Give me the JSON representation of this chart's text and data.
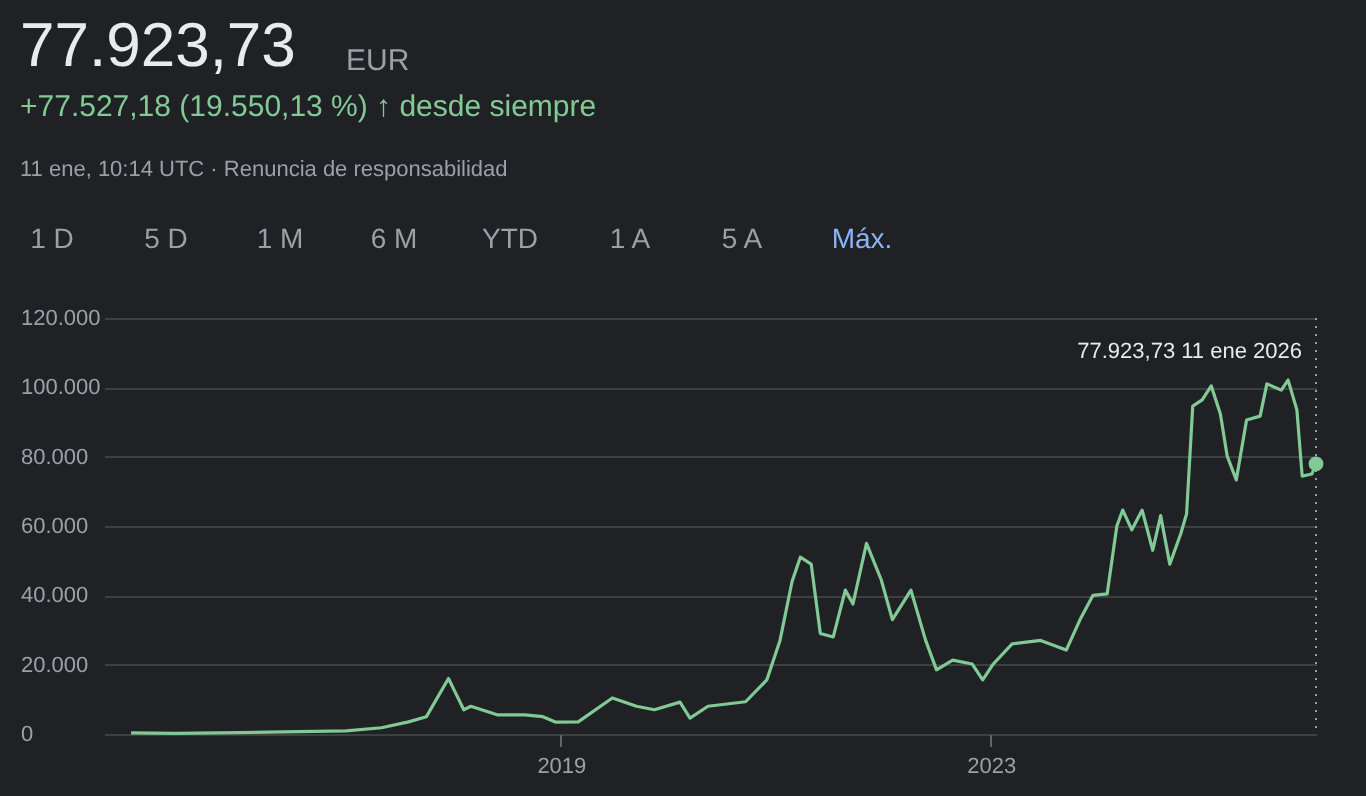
{
  "chart_data": {
    "type": "line",
    "title": "77.923,73",
    "subtitle": "+77.527,18 (19.550,13 %) ↑ desde siempre",
    "annotations": [
      "EUR",
      "11 ene, 10:14 UTC · Renuncia de responsabilidad",
      "1 D",
      "5 D",
      "1 M",
      "6 M",
      "YTD",
      "1 A",
      "5 A",
      "Máx.",
      "77.923,73  11 ene 2026"
    ],
    "x": [
      "2015-01-01",
      "2015-06-01",
      "2016-01-01",
      "2016-06-01",
      "2017-01-01",
      "2017-05-01",
      "2017-08-01",
      "2017-10-01",
      "2017-12-15",
      "2018-01-10",
      "2018-02-05",
      "2018-03-01",
      "2018-06-01",
      "2018-09-01",
      "2018-11-01",
      "2018-12-15",
      "2019-03-01",
      "2019-06-25",
      "2019-09-15",
      "2019-11-15",
      "2020-02-10",
      "2020-03-15",
      "2020-05-15",
      "2020-09-20",
      "2020-12-01",
      "2021-01-15",
      "2021-02-25",
      "2021-03-25",
      "2021-05-01",
      "2021-06-01",
      "2021-07-15",
      "2021-08-25",
      "2021-09-20",
      "2021-11-05",
      "2021-12-25",
      "2022-02-01",
      "2022-04-05",
      "2022-05-25",
      "2022-07-01",
      "2022-08-25",
      "2022-10-30",
      "2022-12-05",
      "2023-01-10",
      "2023-03-15",
      "2023-06-20",
      "2023-09-15",
      "2023-11-01",
      "2023-12-15",
      "2024-02-01",
      "2024-03-05",
      "2024-03-25",
      "2024-04-25",
      "2024-05-30",
      "2024-07-05",
      "2024-08-01",
      "2024-09-01",
      "2024-10-08",
      "2024-10-28",
      "2024-11-18",
      "2024-12-20",
      "2025-01-20",
      "2025-02-20",
      "2025-03-15",
      "2025-04-15",
      "2025-05-20",
      "2025-07-05",
      "2025-07-28",
      "2025-09-15",
      "2025-10-08",
      "2025-11-07",
      "2025-11-25",
      "2025-12-28",
      "2026-01-11"
    ],
    "series": [
      {
        "color": "#81c995",
        "values": [
          300,
          200,
          400,
          600,
          900,
          1800,
          3500,
          5000,
          16000,
          11500,
          7000,
          8000,
          5500,
          5500,
          5000,
          3400,
          3500,
          10400,
          8000,
          7000,
          9200,
          4600,
          8000,
          9300,
          15600,
          27000,
          44000,
          51000,
          49000,
          29000,
          28000,
          41500,
          37500,
          55000,
          44500,
          33000,
          41500,
          27000,
          18500,
          21300,
          20200,
          15600,
          20200,
          26000,
          27000,
          24200,
          33000,
          40000,
          40400,
          60000,
          64600,
          58900,
          64600,
          53000,
          63000,
          49000,
          57700,
          63500,
          94600,
          96400,
          100400,
          92300,
          80200,
          73300,
          90600,
          91700,
          101000,
          99200,
          102100,
          93500,
          74400,
          75000,
          77923.73
        ]
      }
    ],
    "xlim": [
      "2014-10-01",
      "2026-01-11"
    ],
    "xticks": [
      {
        "value": "2019-01-01",
        "label": "2019"
      },
      {
        "value": "2023-01-01",
        "label": "2023"
      }
    ],
    "ylim": [
      0,
      120000
    ],
    "yticks": [
      0,
      {
        "value": 20000,
        "label": "20.000"
      },
      {
        "value": 40000,
        "label": "40.000"
      },
      {
        "value": 60000,
        "label": "60.000"
      },
      {
        "value": 80000,
        "label": "80.000"
      },
      {
        "value": 100000,
        "label": "100.000"
      },
      {
        "value": 120000,
        "label": "120.000"
      }
    ],
    "ref_lines": [
      {
        "axis": "x",
        "value": "2026-01-11",
        "line_style": "dotted",
        "color": "#9aa0a6"
      }
    ],
    "grid": "y",
    "marker": "none",
    "line_style": "solid"
  }
}
